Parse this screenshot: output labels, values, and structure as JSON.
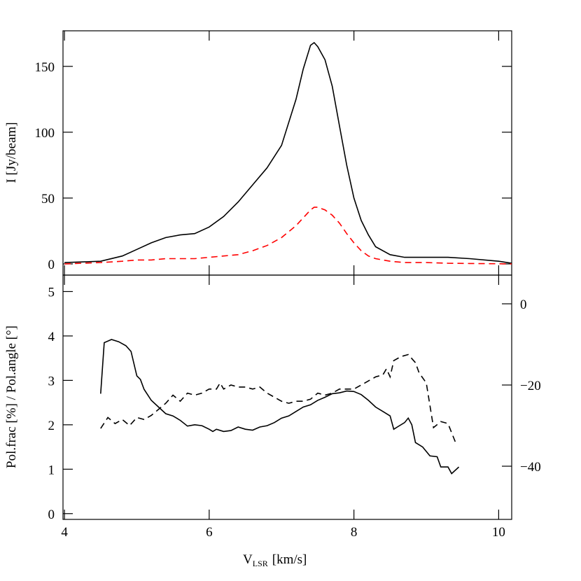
{
  "chart_data": [
    {
      "type": "line",
      "ylabel": "I [Jy/beam]",
      "xlim": [
        3.98,
        10.18
      ],
      "ylim": [
        -8.5,
        177
      ],
      "yticks": [
        0,
        50,
        100,
        150
      ],
      "x": [
        4.0,
        4.5,
        4.8,
        5.0,
        5.2,
        5.4,
        5.6,
        5.8,
        6.0,
        6.2,
        6.4,
        6.6,
        6.8,
        7.0,
        7.2,
        7.3,
        7.4,
        7.45,
        7.5,
        7.6,
        7.7,
        7.8,
        7.9,
        8.0,
        8.1,
        8.2,
        8.3,
        8.5,
        8.7,
        9.0,
        9.3,
        9.6,
        10.0,
        10.18
      ],
      "series": [
        {
          "color": "#000000",
          "dash": false,
          "values": [
            1,
            2,
            6,
            11,
            16,
            20,
            22,
            23,
            28,
            36,
            47,
            60,
            73,
            90,
            125,
            148,
            166,
            168,
            165,
            155,
            135,
            105,
            75,
            50,
            33,
            22,
            13,
            7,
            5,
            5,
            5,
            4,
            2,
            0.5
          ]
        },
        {
          "color": "#ff0000",
          "dash": true,
          "values": [
            0,
            1,
            2,
            3,
            3,
            4,
            4,
            4,
            5,
            6,
            7,
            10,
            14,
            20,
            29,
            35,
            41,
            43,
            43,
            41,
            37,
            31,
            23,
            16,
            10,
            6,
            4,
            2,
            1,
            1,
            0.5,
            0.3,
            0.1,
            0
          ]
        }
      ]
    },
    {
      "type": "line",
      "ylabel": "Pol.frac [%] / Pol.angle [°]",
      "xlabel": {
        "main": "V",
        "sub": "LSR",
        "unit": "[km/s]"
      },
      "xlim": [
        3.98,
        10.18
      ],
      "xticks": [
        4,
        6,
        8,
        10
      ],
      "ylim": [
        -0.13,
        5.37
      ],
      "yticks": [
        0,
        1,
        2,
        3,
        4,
        5
      ],
      "y2lim": [
        -53.1,
        7.07
      ],
      "y2ticks": [
        {
          "value": 0,
          "label": "0"
        },
        {
          "value": -20,
          "label": "−20"
        },
        {
          "value": -40,
          "label": "−40"
        }
      ],
      "series": [
        {
          "color": "#000000",
          "dash": false,
          "x": [
            4.5,
            4.55,
            4.65,
            4.75,
            4.85,
            4.92,
            5.0,
            5.05,
            5.1,
            5.2,
            5.3,
            5.4,
            5.5,
            5.6,
            5.7,
            5.8,
            5.9,
            6.0,
            6.05,
            6.1,
            6.2,
            6.3,
            6.4,
            6.5,
            6.6,
            6.7,
            6.8,
            6.9,
            7.0,
            7.1,
            7.2,
            7.3,
            7.4,
            7.5,
            7.6,
            7.7,
            7.8,
            7.9,
            8.0,
            8.1,
            8.2,
            8.3,
            8.4,
            8.5,
            8.55,
            8.6,
            8.7,
            8.75,
            8.8,
            8.85,
            8.95,
            9.05,
            9.15,
            9.2,
            9.3,
            9.35,
            9.45
          ],
          "values": [
            2.7,
            3.85,
            3.92,
            3.87,
            3.78,
            3.65,
            3.1,
            3.02,
            2.8,
            2.55,
            2.4,
            2.25,
            2.2,
            2.1,
            1.97,
            2.0,
            1.98,
            1.9,
            1.85,
            1.9,
            1.85,
            1.87,
            1.95,
            1.9,
            1.88,
            1.95,
            1.98,
            2.05,
            2.15,
            2.2,
            2.3,
            2.4,
            2.45,
            2.55,
            2.62,
            2.7,
            2.72,
            2.76,
            2.75,
            2.68,
            2.55,
            2.4,
            2.3,
            2.2,
            1.9,
            1.95,
            2.05,
            2.15,
            2.0,
            1.6,
            1.5,
            1.3,
            1.28,
            1.05,
            1.05,
            0.9,
            1.05
          ]
        },
        {
          "color": "#000000",
          "dash": true,
          "axis": "y2",
          "x": [
            4.5,
            4.6,
            4.7,
            4.8,
            4.9,
            5.0,
            5.1,
            5.2,
            5.3,
            5.4,
            5.5,
            5.6,
            5.7,
            5.8,
            5.9,
            6.0,
            6.1,
            6.15,
            6.2,
            6.3,
            6.4,
            6.5,
            6.6,
            6.7,
            6.8,
            6.9,
            7.0,
            7.1,
            7.2,
            7.3,
            7.4,
            7.5,
            7.6,
            7.7,
            7.8,
            7.9,
            8.0,
            8.1,
            8.2,
            8.3,
            8.4,
            8.45,
            8.5,
            8.55,
            8.65,
            8.75,
            8.85,
            8.9,
            9.0,
            9.1,
            9.2,
            9.3,
            9.4
          ],
          "values": [
            -30.7,
            -28,
            -29.5,
            -28.5,
            -30,
            -28,
            -28.5,
            -27.5,
            -26,
            -24.5,
            -22.5,
            -24,
            -22,
            -22.5,
            -22,
            -21,
            -21,
            -19.5,
            -21,
            -20,
            -20.5,
            -20.5,
            -21,
            -20.5,
            -22,
            -23,
            -24,
            -24.5,
            -24,
            -24,
            -23.5,
            -22,
            -22.5,
            -22,
            -21,
            -21,
            -21,
            -20,
            -19,
            -18,
            -17.5,
            -16,
            -18,
            -14,
            -13,
            -12.5,
            -14.5,
            -17,
            -19.5,
            -30.5,
            -29,
            -29.5,
            -34
          ]
        }
      ]
    }
  ]
}
